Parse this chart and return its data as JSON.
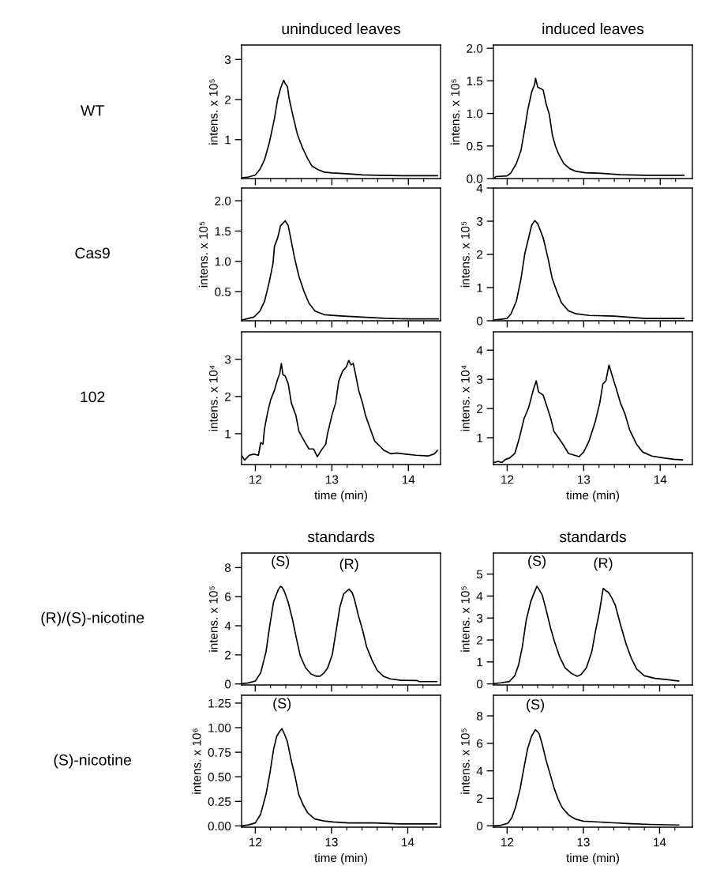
{
  "chart_data": [
    {
      "type": "line",
      "title": "uninduced leaves",
      "ylabel": "intens. x 10⁵",
      "annotations": [
        "WT"
      ],
      "tick_labels": "y",
      "xlim": [
        11.82,
        14.42
      ],
      "ylim": [
        0.03,
        3.36
      ],
      "xticks": [
        12,
        {
          "value": 12.2,
          "label": null
        },
        {
          "value": 12.4,
          "label": null
        },
        {
          "value": 12.6,
          "label": null
        },
        {
          "value": 12.8,
          "label": null
        },
        13,
        {
          "value": 13.2,
          "label": null
        },
        {
          "value": 13.4,
          "label": null
        },
        {
          "value": 13.6,
          "label": null
        },
        {
          "value": 13.8,
          "label": null
        },
        14,
        {
          "value": 14.2,
          "label": null
        }
      ],
      "yticks": [
        1,
        2,
        3
      ],
      "x": [
        11.82,
        11.91,
        12.0,
        12.06,
        12.12,
        12.18,
        12.25,
        12.29,
        12.33,
        12.37,
        12.39,
        12.42,
        12.44,
        12.49,
        12.55,
        12.62,
        12.68,
        12.74,
        12.82,
        12.9,
        13.0,
        13.19,
        13.4,
        13.6,
        14.0,
        14.38
      ],
      "series": [
        {
          "color": "#000000",
          "values": [
            0.05,
            0.07,
            0.12,
            0.26,
            0.5,
            0.9,
            1.53,
            2.0,
            2.28,
            2.48,
            2.4,
            2.32,
            2.04,
            1.61,
            1.13,
            0.78,
            0.54,
            0.34,
            0.25,
            0.19,
            0.17,
            0.15,
            0.12,
            0.11,
            0.1,
            0.1
          ]
        }
      ]
    },
    {
      "type": "line",
      "title": "induced leaves",
      "ylabel": "intens. x 10⁵",
      "tick_labels": "y",
      "xlim": [
        11.82,
        14.42
      ],
      "ylim": [
        0.0,
        2.05
      ],
      "xticks": [
        12,
        {
          "value": 12.2,
          "label": null
        },
        {
          "value": 12.4,
          "label": null
        },
        {
          "value": 12.6,
          "label": null
        },
        {
          "value": 12.8,
          "label": null
        },
        13,
        {
          "value": 13.2,
          "label": null
        },
        {
          "value": 13.4,
          "label": null
        },
        {
          "value": 13.6,
          "label": null
        },
        {
          "value": 13.8,
          "label": null
        },
        14,
        {
          "value": 14.2,
          "label": null
        }
      ],
      "yticks": [
        {
          "value": 0.0,
          "label": "0.0"
        },
        {
          "value": 0.5,
          "label": "0.5"
        },
        {
          "value": 1.0,
          "label": "1.0"
        },
        {
          "value": 1.5,
          "label": "1.5"
        },
        {
          "value": 2.0,
          "label": "2.0"
        }
      ],
      "x": [
        11.83,
        11.85,
        12.0,
        12.05,
        12.12,
        12.18,
        12.23,
        12.27,
        12.32,
        12.36,
        12.37,
        12.4,
        12.44,
        12.47,
        12.51,
        12.55,
        12.59,
        12.63,
        12.67,
        12.74,
        12.82,
        12.9,
        13.02,
        13.23,
        13.48,
        13.81,
        14.31
      ],
      "series": [
        {
          "color": "#000000",
          "values": [
            0.0,
            0.03,
            0.04,
            0.09,
            0.23,
            0.43,
            0.77,
            1.06,
            1.33,
            1.45,
            1.54,
            1.4,
            1.38,
            1.36,
            1.14,
            0.99,
            0.67,
            0.5,
            0.38,
            0.23,
            0.15,
            0.11,
            0.09,
            0.08,
            0.06,
            0.05,
            0.05
          ]
        }
      ]
    },
    {
      "type": "line",
      "ylabel": "intens. x 10⁵",
      "annotations": [
        "Cas9"
      ],
      "tick_labels": "y",
      "xlim": [
        11.82,
        14.42
      ],
      "ylim": [
        0.02,
        2.21
      ],
      "xticks": [
        12,
        {
          "value": 12.2,
          "label": null
        },
        {
          "value": 12.4,
          "label": null
        },
        {
          "value": 12.6,
          "label": null
        },
        {
          "value": 12.8,
          "label": null
        },
        13,
        {
          "value": 13.2,
          "label": null
        },
        {
          "value": 13.4,
          "label": null
        },
        {
          "value": 13.6,
          "label": null
        },
        {
          "value": 13.8,
          "label": null
        },
        14,
        {
          "value": 14.2,
          "label": null
        }
      ],
      "yticks": [
        {
          "value": 0.5,
          "label": "0.5"
        },
        {
          "value": 1.0,
          "label": "1.0"
        },
        {
          "value": 1.5,
          "label": "1.5"
        },
        {
          "value": 2.0,
          "label": "2.0"
        }
      ],
      "x": [
        11.82,
        11.98,
        12.06,
        12.12,
        12.18,
        12.23,
        12.25,
        12.29,
        12.33,
        12.37,
        12.39,
        12.43,
        12.47,
        12.51,
        12.57,
        12.64,
        12.7,
        12.78,
        12.9,
        13.11,
        13.4,
        13.69,
        14.02,
        14.39
      ],
      "series": [
        {
          "color": "#000000",
          "values": [
            0.03,
            0.08,
            0.18,
            0.34,
            0.65,
            0.96,
            1.25,
            1.38,
            1.59,
            1.64,
            1.67,
            1.59,
            1.33,
            1.07,
            0.75,
            0.49,
            0.31,
            0.18,
            0.12,
            0.1,
            0.08,
            0.06,
            0.05,
            0.05
          ]
        }
      ]
    },
    {
      "type": "line",
      "ylabel": "intens. x 10⁵",
      "tick_labels": "y",
      "xlim": [
        11.82,
        14.42
      ],
      "ylim": [
        0,
        4
      ],
      "xticks": [
        12,
        {
          "value": 12.2,
          "label": null
        },
        {
          "value": 12.4,
          "label": null
        },
        {
          "value": 12.6,
          "label": null
        },
        {
          "value": 12.8,
          "label": null
        },
        13,
        {
          "value": 13.2,
          "label": null
        },
        {
          "value": 13.4,
          "label": null
        },
        {
          "value": 13.6,
          "label": null
        },
        {
          "value": 13.8,
          "label": null
        },
        14,
        {
          "value": 14.2,
          "label": null
        }
      ],
      "yticks": [
        0,
        1,
        2,
        3,
        4
      ],
      "x": [
        11.83,
        12.0,
        12.05,
        12.12,
        12.18,
        12.23,
        12.28,
        12.32,
        12.36,
        12.4,
        12.47,
        12.53,
        12.59,
        12.65,
        12.71,
        12.8,
        12.9,
        13.07,
        13.4,
        13.64,
        13.81,
        14.31
      ],
      "series": [
        {
          "color": "#000000",
          "values": [
            0.02,
            0.07,
            0.21,
            0.59,
            1.26,
            2.02,
            2.5,
            2.88,
            3.02,
            2.92,
            2.5,
            1.92,
            1.26,
            0.88,
            0.54,
            0.3,
            0.21,
            0.16,
            0.14,
            0.1,
            0.07,
            0.07
          ]
        }
      ]
    },
    {
      "type": "line",
      "xlabel": "time (min)",
      "ylabel": "intens. x 10⁴",
      "annotations": [
        "102"
      ],
      "xlim": [
        11.82,
        14.42
      ],
      "ylim": [
        0.17,
        3.74
      ],
      "xticks": [
        12,
        {
          "value": 12.2,
          "label": null
        },
        {
          "value": 12.4,
          "label": null
        },
        {
          "value": 12.6,
          "label": null
        },
        {
          "value": 12.8,
          "label": null
        },
        13,
        {
          "value": 13.2,
          "label": null
        },
        {
          "value": 13.4,
          "label": null
        },
        {
          "value": 13.6,
          "label": null
        },
        {
          "value": 13.8,
          "label": null
        },
        14,
        {
          "value": 14.2,
          "label": null
        }
      ],
      "yticks": [
        1,
        2,
        3
      ],
      "x": [
        11.82,
        11.86,
        11.92,
        11.98,
        12.04,
        12.07,
        12.1,
        12.12,
        12.16,
        12.2,
        12.25,
        12.29,
        12.32,
        12.34,
        12.36,
        12.39,
        12.43,
        12.47,
        12.53,
        12.57,
        12.64,
        12.7,
        12.76,
        12.81,
        12.86,
        12.92,
        12.94,
        13.0,
        13.05,
        13.09,
        13.14,
        13.19,
        13.22,
        13.25,
        13.28,
        13.31,
        13.35,
        13.4,
        13.44,
        13.5,
        13.56,
        13.62,
        13.68,
        13.77,
        13.85,
        13.97,
        14.1,
        14.26,
        14.34,
        14.38
      ],
      "series": [
        {
          "color": "#000000",
          "values": [
            0.42,
            0.29,
            0.42,
            0.45,
            0.42,
            0.76,
            0.72,
            1.14,
            1.57,
            1.91,
            2.17,
            2.46,
            2.63,
            2.89,
            2.59,
            2.55,
            2.34,
            1.83,
            1.49,
            1.06,
            0.8,
            0.59,
            0.59,
            0.38,
            0.55,
            0.72,
            0.97,
            1.49,
            1.83,
            2.42,
            2.68,
            2.8,
            2.97,
            2.85,
            2.89,
            2.59,
            2.17,
            1.83,
            1.49,
            1.14,
            0.8,
            0.68,
            0.55,
            0.46,
            0.48,
            0.45,
            0.42,
            0.4,
            0.46,
            0.55
          ]
        }
      ]
    },
    {
      "type": "line",
      "xlabel": "time (min)",
      "ylabel": "intens. x 10⁴",
      "xlim": [
        11.82,
        14.42
      ],
      "ylim": [
        0.08,
        4.63
      ],
      "xticks": [
        12,
        {
          "value": 12.2,
          "label": null
        },
        {
          "value": 12.4,
          "label": null
        },
        {
          "value": 12.6,
          "label": null
        },
        {
          "value": 12.8,
          "label": null
        },
        13,
        {
          "value": 13.2,
          "label": null
        },
        {
          "value": 13.4,
          "label": null
        },
        {
          "value": 13.6,
          "label": null
        },
        {
          "value": 13.8,
          "label": null
        },
        14,
        {
          "value": 14.2,
          "label": null
        }
      ],
      "yticks": [
        1,
        2,
        3,
        4
      ],
      "x": [
        11.83,
        11.88,
        11.93,
        11.98,
        12.03,
        12.1,
        12.16,
        12.22,
        12.28,
        12.34,
        12.38,
        12.41,
        12.47,
        12.53,
        12.57,
        12.61,
        12.67,
        12.74,
        12.8,
        12.88,
        12.94,
        13.0,
        13.07,
        13.15,
        13.21,
        13.25,
        13.29,
        13.33,
        13.38,
        13.42,
        13.48,
        13.54,
        13.6,
        13.69,
        13.77,
        13.89,
        14.06,
        14.18,
        14.29
      ],
      "series": [
        {
          "color": "#000000",
          "values": [
            0.15,
            0.19,
            0.15,
            0.26,
            0.3,
            0.46,
            1.0,
            1.65,
            2.03,
            2.63,
            2.95,
            2.57,
            2.46,
            1.98,
            1.65,
            1.22,
            1.0,
            0.73,
            0.46,
            0.4,
            0.35,
            0.51,
            0.89,
            1.54,
            2.19,
            2.84,
            2.95,
            3.49,
            3.06,
            2.73,
            2.19,
            1.81,
            1.27,
            0.78,
            0.51,
            0.37,
            0.3,
            0.26,
            0.24
          ]
        }
      ]
    },
    {
      "type": "line",
      "title": "standards",
      "ylabel": "intens. x 10⁵",
      "annotations": [
        "(R)/(S)-nicotine",
        {
          "text": "(S)",
          "x": 12.33,
          "y": 6.71
        },
        {
          "text": "(R)",
          "x": 13.23,
          "y": 6.51
        }
      ],
      "tick_labels": "y",
      "xlim": [
        11.82,
        14.43
      ],
      "ylim": [
        -0.07,
        9.0
      ],
      "xticks": [
        12,
        {
          "value": 12.2,
          "label": null
        },
        {
          "value": 12.4,
          "label": null
        },
        {
          "value": 12.6,
          "label": null
        },
        {
          "value": 12.8,
          "label": null
        },
        13,
        {
          "value": 13.2,
          "label": null
        },
        {
          "value": 13.4,
          "label": null
        },
        {
          "value": 13.6,
          "label": null
        },
        {
          "value": 13.8,
          "label": null
        },
        14,
        {
          "value": 14.2,
          "label": null
        }
      ],
      "yticks": [
        0,
        2,
        4,
        6,
        8
      ],
      "x": [
        11.82,
        11.91,
        12.0,
        12.07,
        12.14,
        12.19,
        12.24,
        12.3,
        12.33,
        12.35,
        12.38,
        12.43,
        12.49,
        12.54,
        12.59,
        12.66,
        12.73,
        12.8,
        12.85,
        12.9,
        12.95,
        13.01,
        13.06,
        13.11,
        13.16,
        13.2,
        13.23,
        13.27,
        13.3,
        13.35,
        13.41,
        13.46,
        13.53,
        13.6,
        13.68,
        13.77,
        13.91,
        14.12,
        14.15,
        14.38
      ],
      "series": [
        {
          "color": "#000000",
          "values": [
            0.02,
            0.07,
            0.2,
            0.75,
            2.2,
            4.02,
            5.65,
            6.47,
            6.71,
            6.65,
            6.38,
            5.65,
            4.38,
            3.11,
            1.93,
            1.11,
            0.69,
            0.53,
            0.53,
            0.75,
            1.11,
            2.02,
            3.65,
            5.29,
            6.2,
            6.38,
            6.51,
            6.29,
            5.84,
            4.75,
            3.65,
            2.56,
            1.65,
            0.93,
            0.53,
            0.35,
            0.25,
            0.24,
            0.16,
            0.16
          ]
        }
      ]
    },
    {
      "type": "line",
      "title": "standards",
      "ylabel": "intens. x 10⁵",
      "annotations": [
        {
          "text": "(S)",
          "x": 12.39,
          "y": 4.45
        },
        {
          "text": "(R)",
          "x": 13.26,
          "y": 4.35
        }
      ],
      "tick_labels": "y",
      "xlim": [
        11.82,
        14.43
      ],
      "ylim": [
        -0.05,
        5.96
      ],
      "xticks": [
        12,
        {
          "value": 12.2,
          "label": null
        },
        {
          "value": 12.4,
          "label": null
        },
        {
          "value": 12.6,
          "label": null
        },
        {
          "value": 12.8,
          "label": null
        },
        13,
        {
          "value": 13.2,
          "label": null
        },
        {
          "value": 13.4,
          "label": null
        },
        {
          "value": 13.6,
          "label": null
        },
        {
          "value": 13.8,
          "label": null
        },
        14,
        {
          "value": 14.2,
          "label": null
        }
      ],
      "yticks": [
        0,
        1,
        2,
        3,
        4,
        5
      ],
      "x": [
        11.82,
        11.92,
        12.03,
        12.1,
        12.15,
        12.2,
        12.25,
        12.31,
        12.35,
        12.39,
        12.42,
        12.46,
        12.51,
        12.57,
        12.62,
        12.69,
        12.76,
        12.85,
        12.92,
        12.97,
        13.04,
        13.11,
        13.16,
        13.21,
        13.26,
        13.3,
        13.33,
        13.38,
        13.42,
        13.49,
        13.56,
        13.63,
        13.7,
        13.8,
        13.94,
        14.11,
        14.25
      ],
      "series": [
        {
          "color": "#000000",
          "values": [
            0.01,
            0.05,
            0.11,
            0.37,
            0.86,
            1.7,
            2.9,
            3.75,
            4.11,
            4.45,
            4.29,
            4.05,
            3.39,
            2.54,
            1.94,
            1.22,
            0.73,
            0.46,
            0.35,
            0.43,
            0.73,
            1.46,
            2.42,
            3.27,
            4.35,
            4.23,
            4.17,
            3.87,
            3.57,
            2.66,
            1.82,
            1.16,
            0.67,
            0.37,
            0.25,
            0.19,
            0.13
          ]
        }
      ]
    },
    {
      "type": "line",
      "xlabel": "time (min)",
      "ylabel": "intens. x 10⁶",
      "annotations": [
        "(S)-nicotine",
        {
          "text": "(S)",
          "x": 12.35,
          "y": 0.99
        }
      ],
      "xlim": [
        11.82,
        14.43
      ],
      "ylim": [
        -0.013,
        1.33
      ],
      "xticks": [
        12,
        {
          "value": 12.2,
          "label": null
        },
        {
          "value": 12.4,
          "label": null
        },
        {
          "value": 12.6,
          "label": null
        },
        {
          "value": 12.8,
          "label": null
        },
        13,
        {
          "value": 13.2,
          "label": null
        },
        {
          "value": 13.4,
          "label": null
        },
        {
          "value": 13.6,
          "label": null
        },
        {
          "value": 13.8,
          "label": null
        },
        14,
        {
          "value": 14.2,
          "label": null
        }
      ],
      "yticks": [
        {
          "value": 0.0,
          "label": "0.00"
        },
        {
          "value": 0.25,
          "label": "0.25"
        },
        {
          "value": 0.5,
          "label": "0.50"
        },
        {
          "value": 0.75,
          "label": "0.75"
        },
        {
          "value": 1.0,
          "label": "1.00"
        },
        {
          "value": 1.25,
          "label": "1.25"
        }
      ],
      "x": [
        11.82,
        11.91,
        12.0,
        12.07,
        12.14,
        12.19,
        12.24,
        12.28,
        12.31,
        12.35,
        12.38,
        12.42,
        12.47,
        12.52,
        12.57,
        12.63,
        12.69,
        12.78,
        12.9,
        13.02,
        13.22,
        13.56,
        13.91,
        14.38
      ],
      "series": [
        {
          "color": "#000000",
          "values": [
            0.0,
            0.01,
            0.03,
            0.12,
            0.32,
            0.53,
            0.78,
            0.91,
            0.95,
            0.99,
            0.94,
            0.86,
            0.67,
            0.51,
            0.32,
            0.21,
            0.13,
            0.07,
            0.05,
            0.04,
            0.03,
            0.03,
            0.02,
            0.02
          ]
        }
      ]
    },
    {
      "type": "line",
      "xlabel": "time (min)",
      "ylabel": "intens. x 10⁵",
      "annotations": [
        {
          "text": "(S)",
          "x": 12.37,
          "y": 6.99
        }
      ],
      "xlim": [
        11.82,
        14.43
      ],
      "ylim": [
        -0.1,
        9.5
      ],
      "xticks": [
        12,
        {
          "value": 12.2,
          "label": null
        },
        {
          "value": 12.4,
          "label": null
        },
        {
          "value": 12.6,
          "label": null
        },
        {
          "value": 12.8,
          "label": null
        },
        13,
        {
          "value": 13.2,
          "label": null
        },
        {
          "value": 13.4,
          "label": null
        },
        {
          "value": 13.6,
          "label": null
        },
        {
          "value": 13.8,
          "label": null
        },
        14,
        {
          "value": 14.2,
          "label": null
        }
      ],
      "yticks": [
        0,
        2,
        4,
        6,
        8
      ],
      "x": [
        11.82,
        11.92,
        12.01,
        12.06,
        12.11,
        12.17,
        12.22,
        12.27,
        12.32,
        12.37,
        12.39,
        12.42,
        12.46,
        12.51,
        12.57,
        12.62,
        12.67,
        12.72,
        12.81,
        12.9,
        13.0,
        13.17,
        13.35,
        13.63,
        13.87,
        14.25
      ],
      "series": [
        {
          "color": "#000000",
          "values": [
            0.0,
            0.04,
            0.19,
            0.57,
            1.34,
            2.68,
            4.21,
            5.65,
            6.51,
            6.99,
            6.9,
            6.7,
            5.94,
            4.79,
            3.64,
            2.68,
            1.92,
            1.34,
            0.77,
            0.48,
            0.34,
            0.29,
            0.23,
            0.15,
            0.1,
            0.06
          ]
        }
      ]
    }
  ]
}
